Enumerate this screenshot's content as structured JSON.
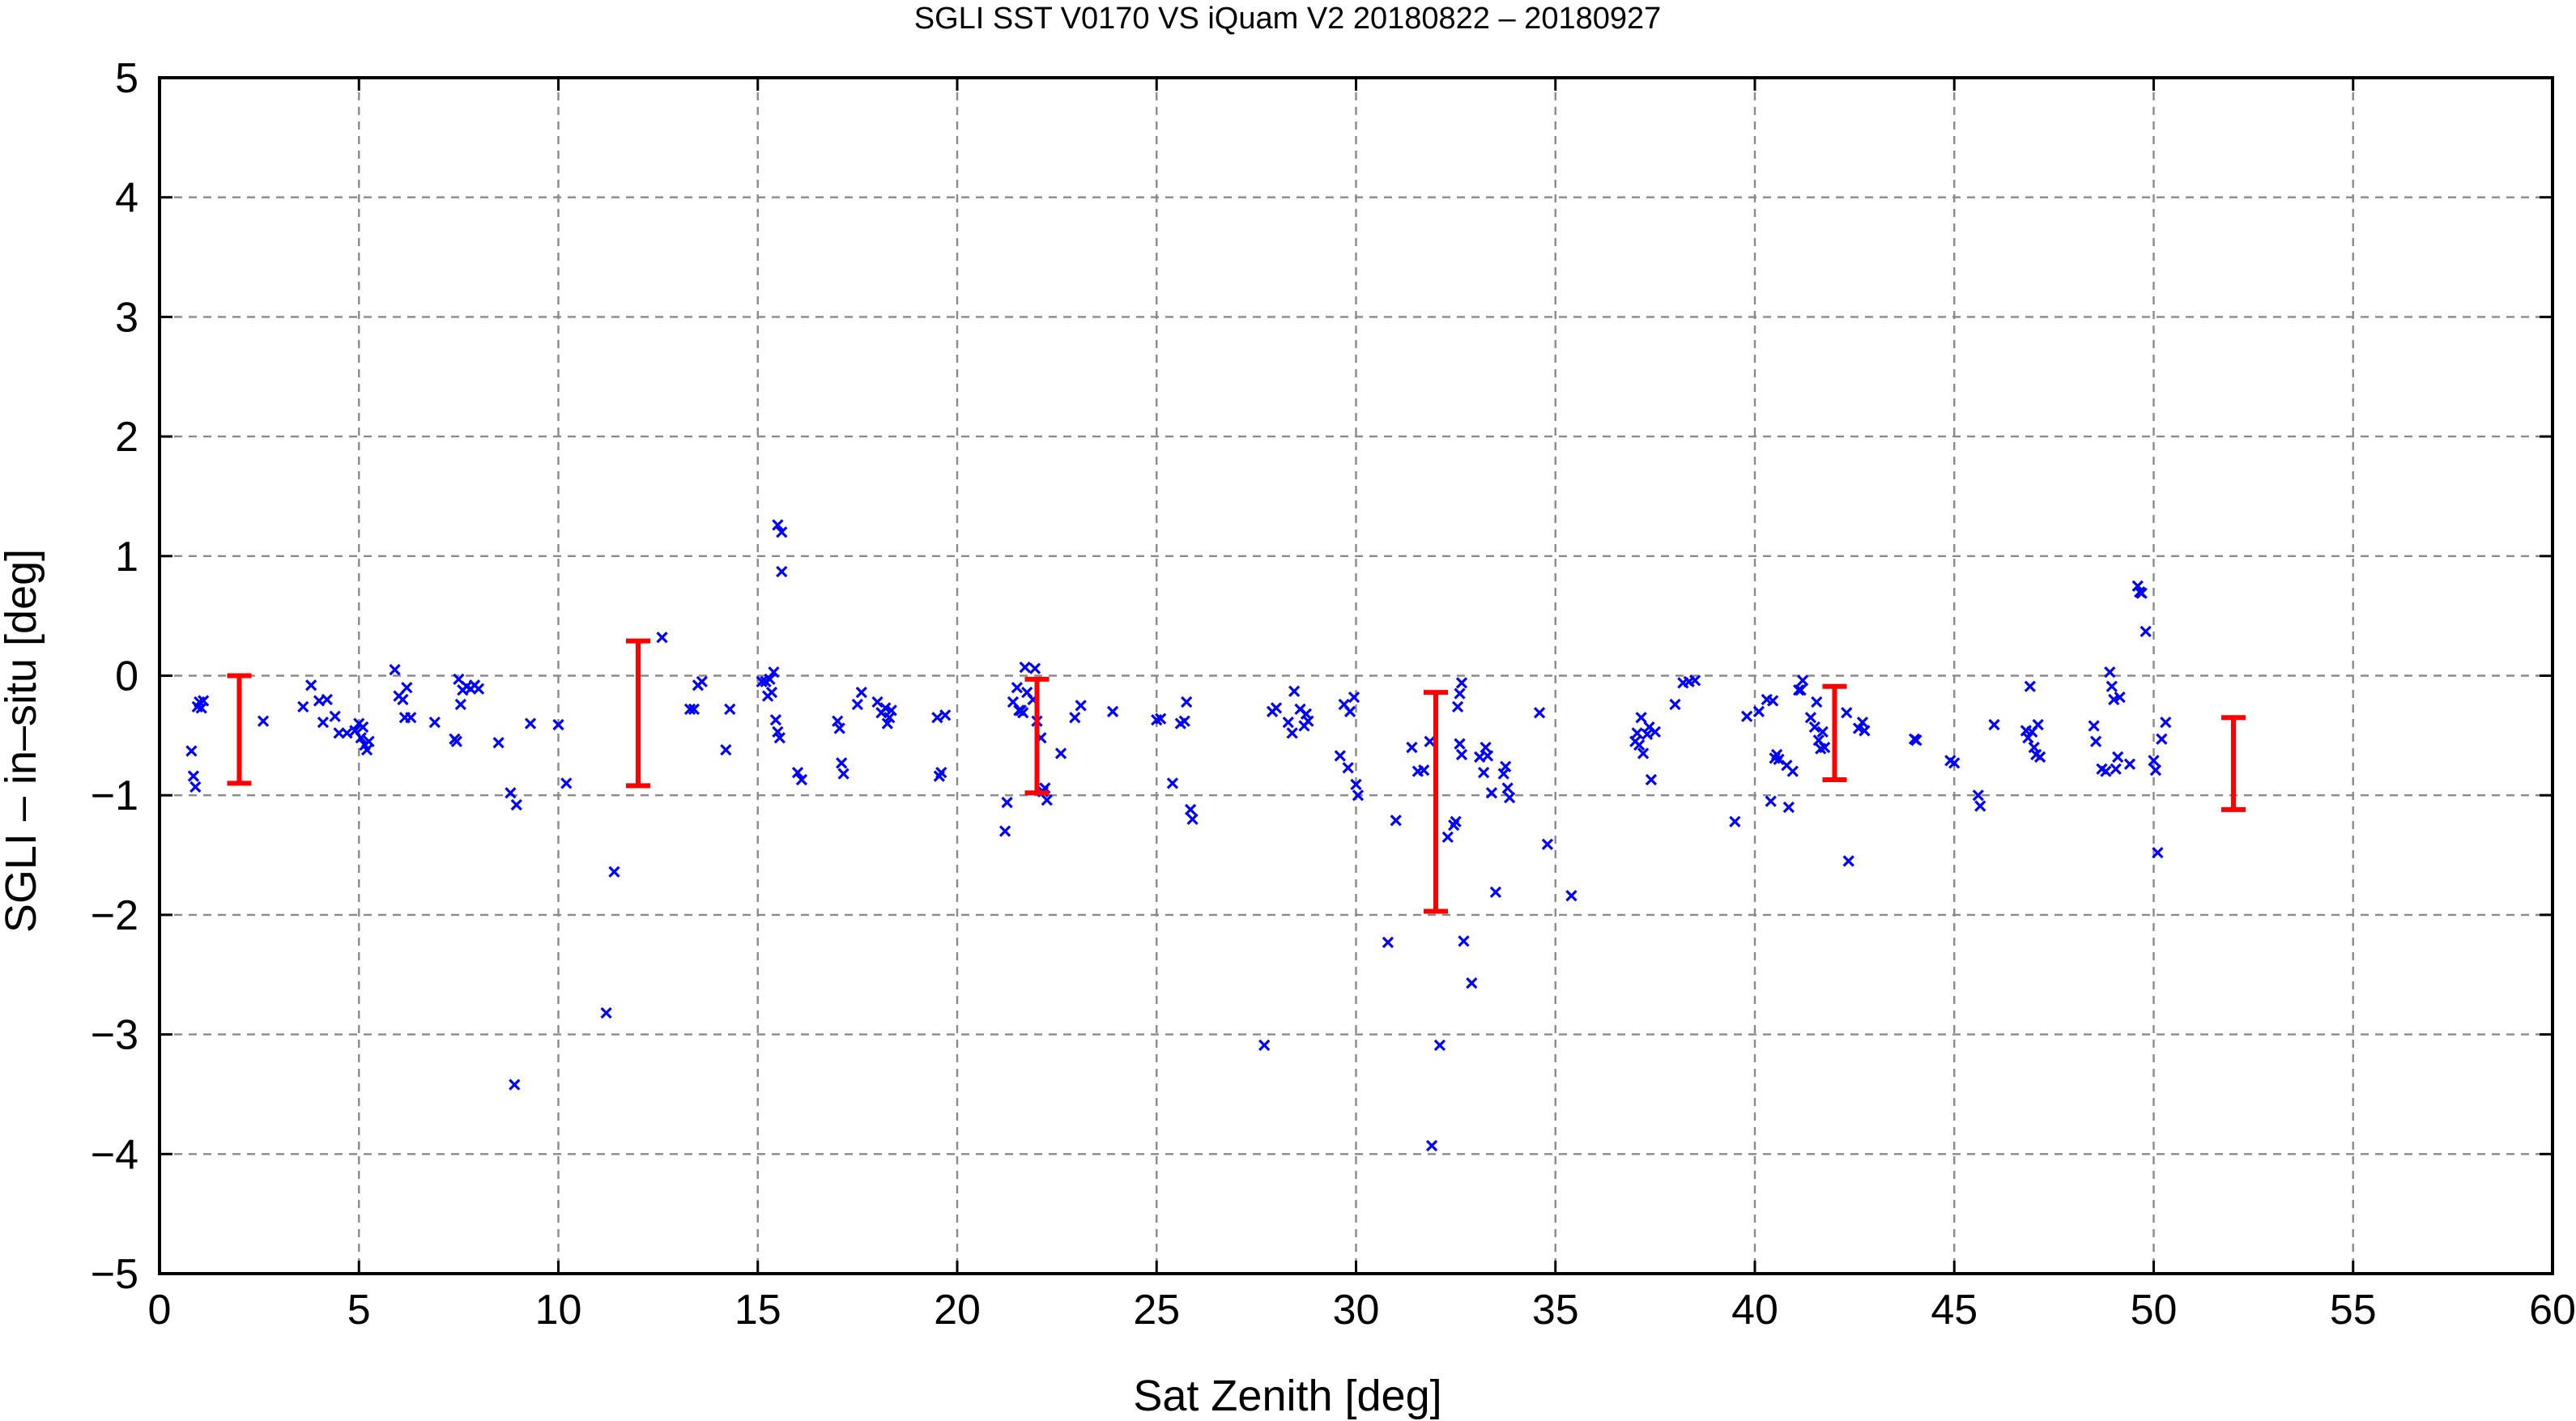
{
  "chart_data": {
    "type": "scatter",
    "title": "SGLI SST V0170 VS iQuam V2 20180822 – 20180927",
    "xlabel": "Sat Zenith [deg]",
    "ylabel": "SGLI – in–situ [deg]",
    "xlim": [
      0,
      60
    ],
    "ylim": [
      -5,
      5
    ],
    "xticks": [
      0,
      5,
      10,
      15,
      20,
      25,
      30,
      35,
      40,
      45,
      50,
      55,
      60
    ],
    "yticks": [
      -5,
      -4,
      -3,
      -2,
      -1,
      0,
      1,
      2,
      3,
      4,
      5
    ],
    "grid": true,
    "points_color": "#0000ff",
    "errorbar_color": "#ff0000",
    "points": [
      [
        0.8,
        -0.63
      ],
      [
        0.85,
        -0.84
      ],
      [
        0.9,
        -0.93
      ],
      [
        0.95,
        -0.26
      ],
      [
        1.0,
        -0.22
      ],
      [
        1.05,
        -0.27
      ],
      [
        1.1,
        -0.21
      ],
      [
        2.6,
        -0.38
      ],
      [
        3.6,
        -0.26
      ],
      [
        3.8,
        -0.08
      ],
      [
        4.0,
        -0.21
      ],
      [
        4.1,
        -0.39
      ],
      [
        4.2,
        -0.2
      ],
      [
        4.4,
        -0.34
      ],
      [
        4.5,
        -0.48
      ],
      [
        4.7,
        -0.48
      ],
      [
        4.9,
        -0.46
      ],
      [
        5.0,
        -0.4
      ],
      [
        5.05,
        -0.52
      ],
      [
        5.1,
        -0.43
      ],
      [
        5.15,
        -0.58
      ],
      [
        5.2,
        -0.62
      ],
      [
        5.25,
        -0.55
      ],
      [
        5.9,
        0.05
      ],
      [
        6.0,
        -0.17
      ],
      [
        6.1,
        -0.2
      ],
      [
        6.15,
        -0.35
      ],
      [
        6.2,
        -0.1
      ],
      [
        6.3,
        -0.35
      ],
      [
        6.9,
        -0.39
      ],
      [
        7.4,
        -0.53
      ],
      [
        7.45,
        -0.55
      ],
      [
        7.5,
        -0.03
      ],
      [
        7.55,
        -0.24
      ],
      [
        7.6,
        -0.12
      ],
      [
        7.7,
        -0.09
      ],
      [
        7.8,
        -0.11
      ],
      [
        7.9,
        -0.08
      ],
      [
        8.0,
        -0.11
      ],
      [
        8.5,
        -0.56
      ],
      [
        8.8,
        -0.98
      ],
      [
        8.9,
        -3.42
      ],
      [
        8.95,
        -1.08
      ],
      [
        9.3,
        -0.4
      ],
      [
        10.0,
        -0.41
      ],
      [
        10.2,
        -0.9
      ],
      [
        11.2,
        -2.82
      ],
      [
        11.4,
        -1.64
      ],
      [
        12.6,
        0.32
      ],
      [
        13.3,
        -0.28
      ],
      [
        13.4,
        -0.28
      ],
      [
        13.5,
        -0.08
      ],
      [
        13.6,
        -0.05
      ],
      [
        14.2,
        -0.62
      ],
      [
        14.3,
        -0.28
      ],
      [
        15.1,
        -0.05
      ],
      [
        15.2,
        -0.05
      ],
      [
        15.25,
        -0.17
      ],
      [
        15.3,
        -0.03
      ],
      [
        15.35,
        -0.14
      ],
      [
        15.4,
        0.03
      ],
      [
        15.45,
        -0.37
      ],
      [
        15.5,
        -0.47
      ],
      [
        15.55,
        -0.52
      ],
      [
        15.5,
        1.26
      ],
      [
        15.6,
        1.2
      ],
      [
        15.6,
        0.87
      ],
      [
        16.0,
        -0.81
      ],
      [
        16.1,
        -0.87
      ],
      [
        17.0,
        -0.38
      ],
      [
        17.05,
        -0.44
      ],
      [
        17.1,
        -0.73
      ],
      [
        17.15,
        -0.82
      ],
      [
        17.5,
        -0.24
      ],
      [
        17.6,
        -0.14
      ],
      [
        18.0,
        -0.22
      ],
      [
        18.1,
        -0.31
      ],
      [
        18.2,
        -0.27
      ],
      [
        18.25,
        -0.4
      ],
      [
        18.3,
        -0.35
      ],
      [
        18.35,
        -0.29
      ],
      [
        19.5,
        -0.35
      ],
      [
        19.55,
        -0.84
      ],
      [
        19.6,
        -0.81
      ],
      [
        19.7,
        -0.33
      ],
      [
        21.2,
        -1.3
      ],
      [
        21.25,
        -1.06
      ],
      [
        21.4,
        -0.22
      ],
      [
        21.5,
        -0.1
      ],
      [
        21.55,
        -0.29
      ],
      [
        21.6,
        -0.29
      ],
      [
        21.65,
        -0.31
      ],
      [
        21.7,
        0.07
      ],
      [
        21.75,
        -0.14
      ],
      [
        21.9,
        -0.2
      ],
      [
        21.95,
        0.06
      ],
      [
        22.0,
        -0.38
      ],
      [
        22.1,
        -0.52
      ],
      [
        22.15,
        -0.97
      ],
      [
        22.2,
        -0.94
      ],
      [
        22.25,
        -1.04
      ],
      [
        22.6,
        -0.65
      ],
      [
        22.95,
        -0.35
      ],
      [
        23.1,
        -0.25
      ],
      [
        23.9,
        -0.3
      ],
      [
        25.0,
        -0.37
      ],
      [
        25.1,
        -0.36
      ],
      [
        25.4,
        -0.9
      ],
      [
        25.6,
        -0.4
      ],
      [
        25.7,
        -0.38
      ],
      [
        25.75,
        -0.22
      ],
      [
        25.85,
        -1.12
      ],
      [
        25.9,
        -1.2
      ],
      [
        27.7,
        -3.09
      ],
      [
        27.9,
        -0.3
      ],
      [
        28.0,
        -0.27
      ],
      [
        28.3,
        -0.39
      ],
      [
        28.4,
        -0.48
      ],
      [
        28.45,
        -0.13
      ],
      [
        28.6,
        -0.28
      ],
      [
        28.7,
        -0.42
      ],
      [
        28.75,
        -0.32
      ],
      [
        28.8,
        -0.38
      ],
      [
        29.6,
        -0.67
      ],
      [
        29.7,
        -0.24
      ],
      [
        29.8,
        -0.77
      ],
      [
        29.85,
        -0.3
      ],
      [
        29.95,
        -0.18
      ],
      [
        30.0,
        -0.91
      ],
      [
        30.05,
        -1.0
      ],
      [
        30.8,
        -2.23
      ],
      [
        31.0,
        -1.21
      ],
      [
        31.4,
        -0.6
      ],
      [
        31.55,
        -0.8
      ],
      [
        31.7,
        -0.79
      ],
      [
        31.85,
        -0.55
      ],
      [
        31.9,
        -3.93
      ],
      [
        32.1,
        -3.09
      ],
      [
        32.3,
        -1.35
      ],
      [
        32.45,
        -1.25
      ],
      [
        32.5,
        -1.22
      ],
      [
        32.55,
        -0.26
      ],
      [
        32.6,
        -0.15
      ],
      [
        32.65,
        -0.06
      ],
      [
        32.6,
        -0.57
      ],
      [
        32.65,
        -0.66
      ],
      [
        32.7,
        -2.22
      ],
      [
        32.9,
        -2.57
      ],
      [
        33.1,
        -0.68
      ],
      [
        33.2,
        -0.81
      ],
      [
        33.25,
        -0.6
      ],
      [
        33.3,
        -0.67
      ],
      [
        33.4,
        -0.98
      ],
      [
        33.5,
        -1.81
      ],
      [
        33.7,
        -0.82
      ],
      [
        33.75,
        -0.76
      ],
      [
        33.8,
        -0.94
      ],
      [
        33.85,
        -1.02
      ],
      [
        34.6,
        -0.31
      ],
      [
        34.8,
        -1.41
      ],
      [
        35.4,
        -1.84
      ],
      [
        37.0,
        -0.55
      ],
      [
        37.05,
        -0.48
      ],
      [
        37.1,
        -0.58
      ],
      [
        37.15,
        -0.35
      ],
      [
        37.2,
        -0.65
      ],
      [
        37.3,
        -0.49
      ],
      [
        37.35,
        -0.43
      ],
      [
        37.4,
        -0.87
      ],
      [
        37.5,
        -0.47
      ],
      [
        38.0,
        -0.24
      ],
      [
        38.2,
        -0.06
      ],
      [
        38.35,
        -0.05
      ],
      [
        38.5,
        -0.04
      ],
      [
        39.5,
        -1.22
      ],
      [
        39.8,
        -0.34
      ],
      [
        40.1,
        -0.3
      ],
      [
        40.3,
        -0.2
      ],
      [
        40.4,
        -1.05
      ],
      [
        40.45,
        -0.21
      ],
      [
        40.5,
        -0.69
      ],
      [
        40.55,
        -0.66
      ],
      [
        40.6,
        -0.7
      ],
      [
        40.8,
        -0.75
      ],
      [
        40.85,
        -1.1
      ],
      [
        40.95,
        -0.8
      ],
      [
        41.1,
        -0.12
      ],
      [
        41.15,
        -0.12
      ],
      [
        41.2,
        -0.04
      ],
      [
        41.4,
        -0.35
      ],
      [
        41.5,
        -0.43
      ],
      [
        41.55,
        -0.22
      ],
      [
        41.6,
        -0.54
      ],
      [
        41.65,
        -0.61
      ],
      [
        41.7,
        -0.47
      ],
      [
        41.75,
        -0.6
      ],
      [
        42.3,
        -0.31
      ],
      [
        42.35,
        -1.55
      ],
      [
        42.6,
        -0.44
      ],
      [
        42.7,
        -0.39
      ],
      [
        42.75,
        -0.46
      ],
      [
        44.0,
        -0.53
      ],
      [
        44.05,
        -0.54
      ],
      [
        44.9,
        -0.71
      ],
      [
        45.0,
        -0.73
      ],
      [
        45.6,
        -1.0
      ],
      [
        45.65,
        -1.09
      ],
      [
        46.0,
        -0.41
      ],
      [
        46.8,
        -0.46
      ],
      [
        46.85,
        -0.52
      ],
      [
        46.9,
        -0.09
      ],
      [
        46.95,
        -0.47
      ],
      [
        47.0,
        -0.6
      ],
      [
        47.05,
        -0.66
      ],
      [
        47.1,
        -0.41
      ],
      [
        47.15,
        -0.68
      ],
      [
        48.5,
        -0.42
      ],
      [
        48.55,
        -0.55
      ],
      [
        48.7,
        -0.78
      ],
      [
        48.8,
        -0.8
      ],
      [
        48.9,
        0.03
      ],
      [
        48.95,
        -0.09
      ],
      [
        49.0,
        -0.2
      ],
      [
        49.05,
        -0.78
      ],
      [
        49.1,
        -0.68
      ],
      [
        49.15,
        -0.18
      ],
      [
        49.4,
        -0.74
      ],
      [
        49.6,
        0.75
      ],
      [
        49.65,
        0.7
      ],
      [
        49.7,
        0.69
      ],
      [
        49.8,
        0.37
      ],
      [
        50.0,
        -0.71
      ],
      [
        50.05,
        -0.79
      ],
      [
        50.1,
        -1.48
      ],
      [
        50.2,
        -0.53
      ],
      [
        50.3,
        -0.39
      ]
    ],
    "error_bars": [
      {
        "x": 2,
        "low": -0.9,
        "high": 0.0
      },
      {
        "x": 12,
        "low": -0.92,
        "high": 0.29
      },
      {
        "x": 22,
        "low": -0.98,
        "high": -0.03
      },
      {
        "x": 32,
        "low": -1.97,
        "high": -0.14
      },
      {
        "x": 42,
        "low": -0.87,
        "high": -0.09
      },
      {
        "x": 52,
        "low": -1.12,
        "high": -0.35
      }
    ]
  }
}
